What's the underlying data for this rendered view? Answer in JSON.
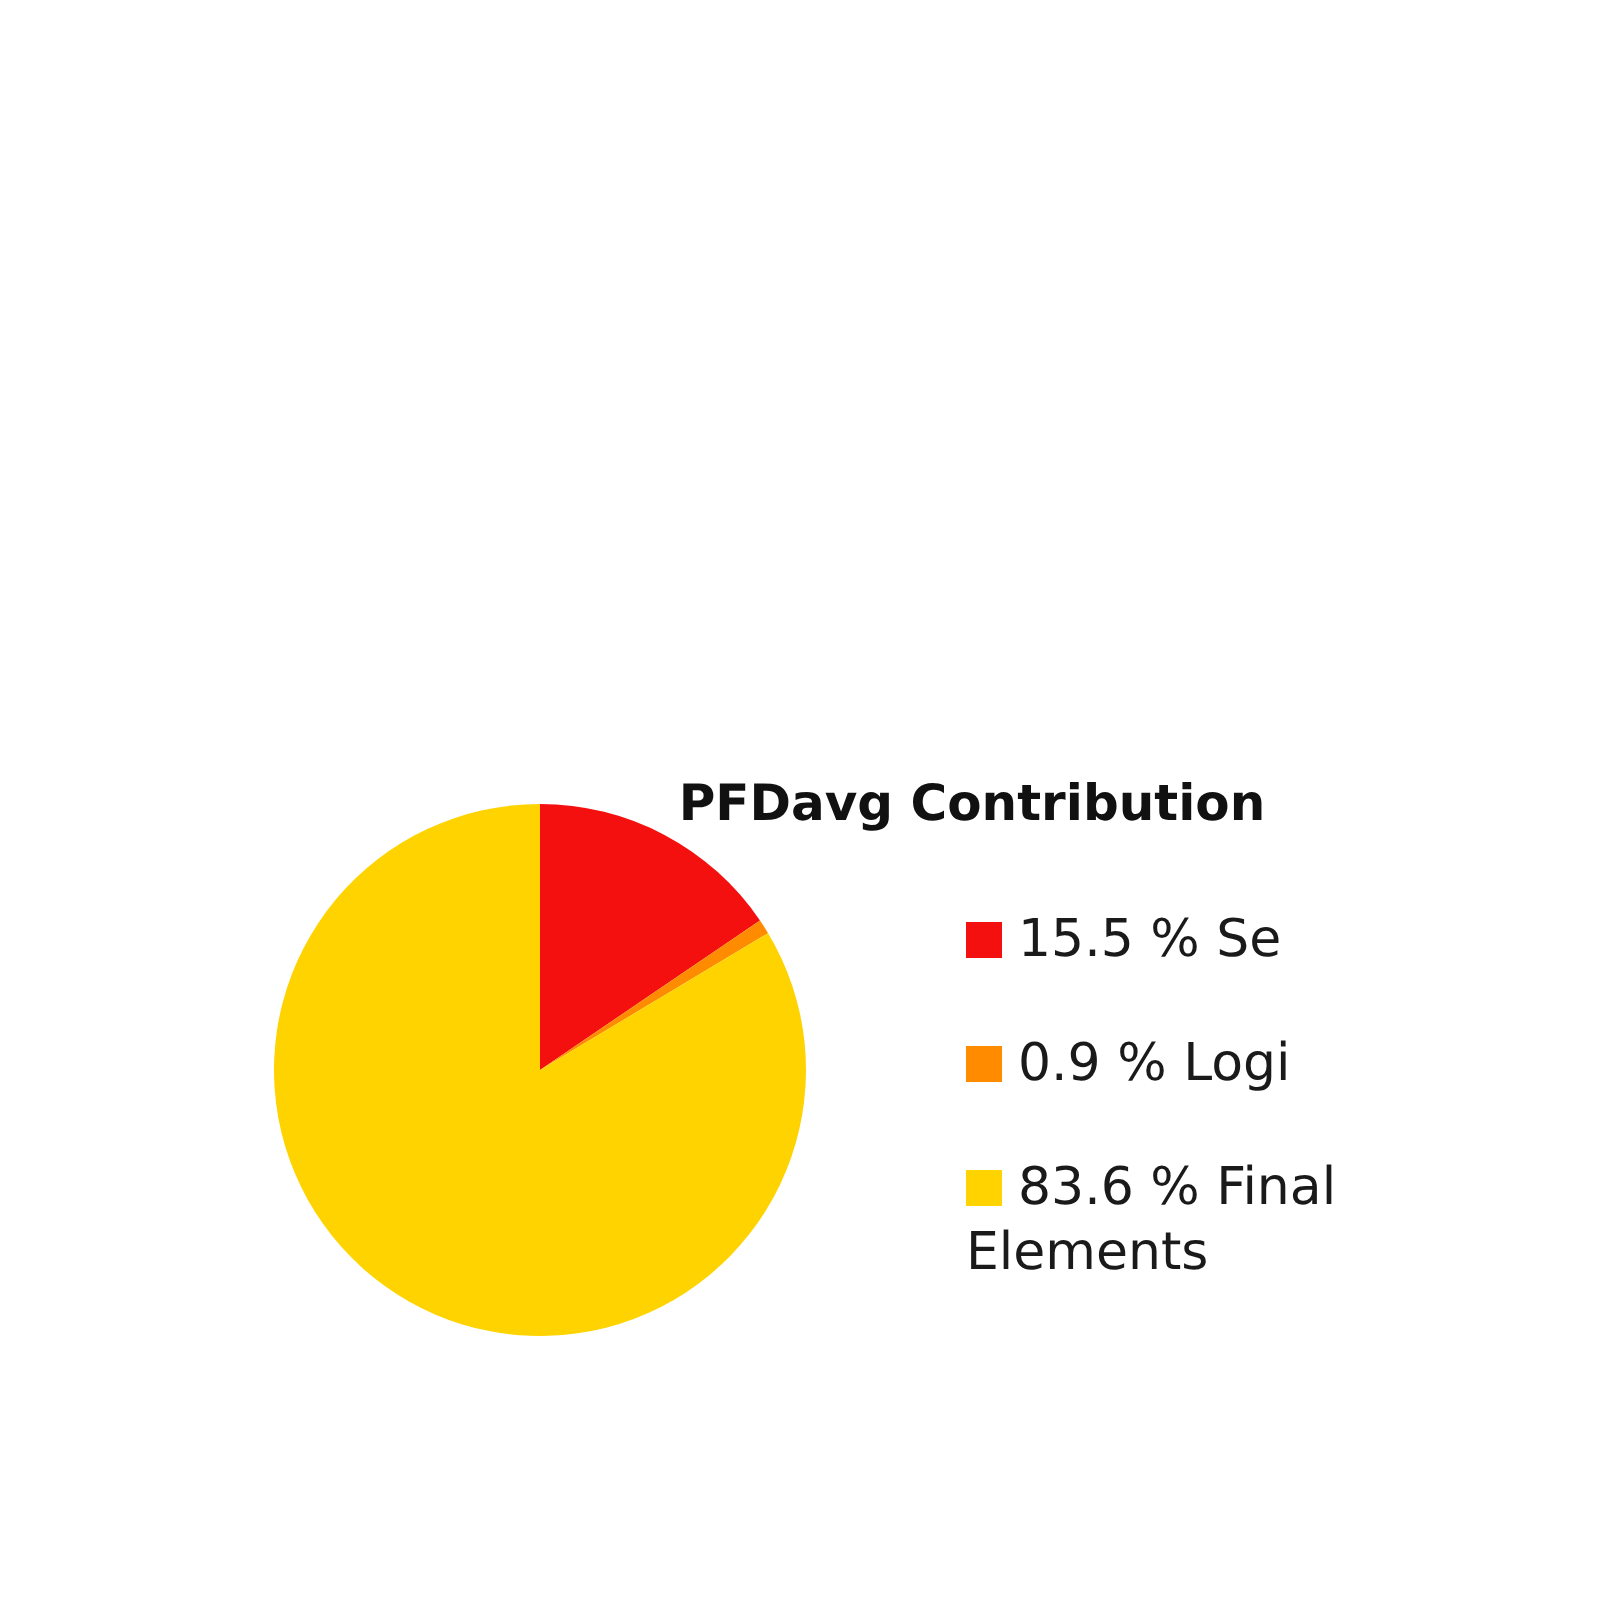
{
  "chart_data": {
    "type": "pie",
    "title": "PFDavg Contribution",
    "categories": [
      "15.5 % Se",
      "0.9 % Logi",
      "83.6 % Final Elements"
    ],
    "values": [
      15.5,
      0.9,
      83.6
    ],
    "colors": [
      "#f51010",
      "#ff8c00",
      "#ffd300"
    ],
    "legend": "right"
  }
}
